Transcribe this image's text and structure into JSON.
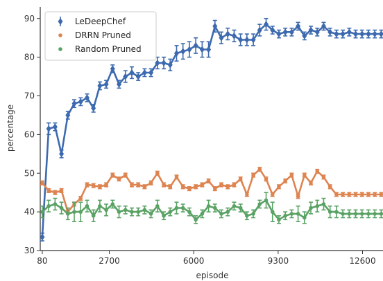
{
  "chart_data": {
    "type": "line",
    "xlabel": "episode",
    "ylabel": "percentage",
    "xlim": [
      0,
      13400
    ],
    "ylim": [
      30,
      93
    ],
    "xticks": [
      80,
      2700,
      6000,
      9300,
      12600
    ],
    "yticks": [
      30,
      40,
      50,
      60,
      70,
      80,
      90
    ],
    "grid": false,
    "legend_position": "top-left",
    "x": [
      80,
      330,
      580,
      830,
      1080,
      1330,
      1580,
      1830,
      2080,
      2330,
      2580,
      2830,
      3080,
      3330,
      3580,
      3830,
      4080,
      4330,
      4580,
      4830,
      5080,
      5330,
      5580,
      5830,
      6080,
      6330,
      6580,
      6830,
      7080,
      7330,
      7580,
      7830,
      8080,
      8330,
      8580,
      8830,
      9080,
      9330,
      9580,
      9830,
      10080,
      10330,
      10580,
      10830,
      11080,
      11330,
      11580,
      11830,
      12080,
      12330,
      12580,
      12830,
      13080,
      13330
    ],
    "series": [
      {
        "name": "LeDeepChef",
        "color": "#3d6aaf",
        "marker": "diamond",
        "values": [
          33.5,
          61.5,
          62.0,
          55.0,
          65.0,
          68.0,
          68.5,
          69.5,
          66.8,
          72.6,
          73.0,
          77.0,
          73.0,
          75.0,
          76.0,
          75.0,
          76.0,
          76.0,
          78.5,
          78.5,
          78.0,
          81.0,
          81.5,
          82.0,
          83.0,
          82.0,
          82.0,
          88.0,
          85.0,
          86.0,
          85.5,
          84.5,
          84.5,
          84.5,
          87.0,
          88.5,
          87.0,
          86.0,
          86.5,
          86.5,
          88.0,
          85.5,
          87.0,
          86.5,
          88.0,
          86.5,
          86.0,
          86.0,
          86.5,
          86.0,
          86.0,
          86.0,
          86.0,
          86.0
        ],
        "errors": [
          1.0,
          1.5,
          1.0,
          1.0,
          1.0,
          1.0,
          1.0,
          1.0,
          1.0,
          1.0,
          1.0,
          1.0,
          1.0,
          1.5,
          1.5,
          1.0,
          1.0,
          1.0,
          1.5,
          1.5,
          1.5,
          2.0,
          2.0,
          2.0,
          2.0,
          2.0,
          2.0,
          1.5,
          1.5,
          1.5,
          1.5,
          1.5,
          1.5,
          1.5,
          1.5,
          1.5,
          1.0,
          1.0,
          1.0,
          1.0,
          1.0,
          1.0,
          1.0,
          1.0,
          1.0,
          1.0,
          1.0,
          1.0,
          1.0,
          1.0,
          1.0,
          1.0,
          1.0,
          1.0
        ]
      },
      {
        "name": "DRRN Pruned",
        "color": "#dd8451",
        "marker": "circle",
        "values": [
          47.5,
          45.5,
          45.0,
          45.5,
          40.0,
          42.0,
          43.5,
          47.0,
          46.8,
          46.5,
          47.0,
          49.5,
          48.5,
          49.5,
          47.0,
          47.0,
          46.5,
          47.5,
          50.0,
          47.0,
          46.5,
          49.0,
          46.5,
          46.0,
          46.5,
          47.0,
          48.0,
          46.0,
          47.0,
          46.5,
          47.0,
          48.5,
          44.5,
          49.5,
          51.0,
          48.5,
          44.5,
          46.5,
          48.0,
          49.5,
          44.0,
          49.5,
          47.5,
          50.5,
          49.0,
          46.5,
          44.5,
          44.5,
          44.5,
          44.5,
          44.5,
          44.5,
          44.5,
          44.5
        ],
        "errors": [
          0.5,
          0.5,
          0.5,
          0.5,
          0.5,
          0.5,
          0.5,
          0.5,
          0.5,
          0.5,
          0.5,
          0.5,
          0.5,
          0.5,
          0.5,
          0.5,
          0.5,
          0.5,
          0.5,
          0.5,
          0.5,
          0.5,
          0.5,
          0.5,
          0.5,
          0.5,
          0.5,
          0.5,
          0.5,
          0.5,
          0.5,
          0.5,
          0.5,
          0.5,
          0.5,
          0.5,
          0.5,
          0.5,
          0.5,
          0.5,
          0.5,
          0.5,
          0.5,
          0.5,
          0.5,
          0.5,
          0.5,
          0.5,
          0.5,
          0.5,
          0.5,
          0.5,
          0.5,
          0.5
        ]
      },
      {
        "name": "Random Pruned",
        "color": "#59a264",
        "marker": "circle",
        "values": [
          40.0,
          41.5,
          42.0,
          41.0,
          39.5,
          40.0,
          40.0,
          41.5,
          39.0,
          41.5,
          40.5,
          42.0,
          40.0,
          40.5,
          40.0,
          40.0,
          40.5,
          39.5,
          41.5,
          39.0,
          40.0,
          41.0,
          41.0,
          40.0,
          38.0,
          39.5,
          41.5,
          41.0,
          39.5,
          40.0,
          41.5,
          41.0,
          39.0,
          39.5,
          42.0,
          43.0,
          40.0,
          38.0,
          39.0,
          39.5,
          39.5,
          38.5,
          41.0,
          41.5,
          42.0,
          40.0,
          40.0,
          39.5,
          39.5,
          39.5,
          39.5,
          39.5,
          39.5,
          39.5
        ],
        "errors": [
          1.5,
          1.5,
          1.5,
          1.5,
          1.5,
          2.5,
          2.5,
          1.5,
          1.5,
          1.5,
          1.5,
          1.0,
          1.5,
          1.0,
          1.0,
          1.0,
          1.0,
          1.0,
          1.5,
          1.0,
          1.0,
          1.5,
          1.0,
          1.0,
          1.0,
          1.0,
          1.5,
          1.0,
          1.0,
          1.0,
          1.0,
          1.0,
          1.0,
          1.0,
          1.0,
          2.0,
          2.5,
          1.0,
          1.0,
          1.0,
          2.0,
          1.5,
          1.5,
          1.5,
          1.5,
          1.5,
          1.5,
          1.0,
          1.0,
          1.0,
          1.0,
          1.0,
          1.0,
          1.0
        ]
      }
    ]
  }
}
